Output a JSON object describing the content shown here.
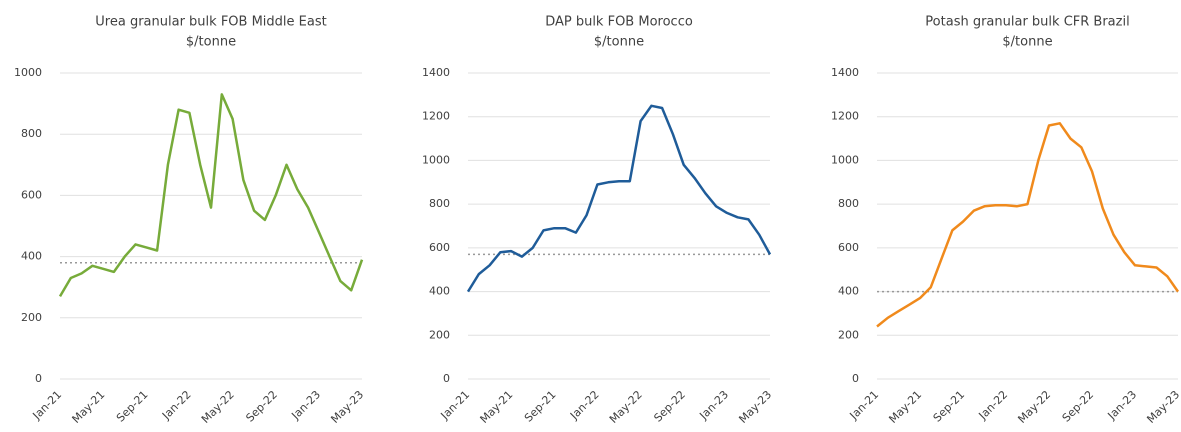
{
  "chart_data": [
    {
      "type": "line",
      "title": "Urea granular bulk FOB Middle East",
      "subtitle": "$/tonne",
      "categories": [
        "Jan-21",
        null,
        null,
        null,
        "May-21",
        null,
        null,
        null,
        "Sep-21",
        null,
        null,
        null,
        "Jan-22",
        null,
        null,
        null,
        "May-22",
        null,
        null,
        null,
        "Sep-22",
        null,
        null,
        null,
        "Jan-23",
        null,
        null,
        null,
        "May-23"
      ],
      "series": [
        {
          "name": "Urea",
          "color": "#77ab3a",
          "values": [
            270,
            330,
            345,
            370,
            360,
            350,
            400,
            440,
            430,
            420,
            700,
            880,
            870,
            700,
            560,
            930,
            850,
            650,
            550,
            520,
            600,
            700,
            620,
            560,
            480,
            400,
            320,
            290,
            390
          ]
        }
      ],
      "reference": 380,
      "ylim": [
        0,
        1000
      ],
      "yticks": [
        0,
        200,
        400,
        600,
        800,
        1000
      ],
      "grid": true
    },
    {
      "type": "line",
      "title": "DAP bulk FOB Morocco",
      "subtitle": "$/tonne",
      "categories": [
        "Jan-21",
        null,
        null,
        null,
        "May-21",
        null,
        null,
        null,
        "Sep-21",
        null,
        null,
        null,
        "Jan-22",
        null,
        null,
        null,
        "May-22",
        null,
        null,
        null,
        "Sep-22",
        null,
        null,
        null,
        "Jan-23",
        null,
        null,
        null,
        "May-23"
      ],
      "series": [
        {
          "name": "DAP",
          "color": "#1f5c99",
          "values": [
            400,
            480,
            520,
            580,
            585,
            560,
            600,
            680,
            690,
            690,
            670,
            750,
            890,
            900,
            905,
            905,
            1180,
            1250,
            1240,
            1120,
            980,
            920,
            850,
            790,
            760,
            740,
            730,
            660,
            570
          ]
        }
      ],
      "reference": 570,
      "ylim": [
        0,
        1400
      ],
      "yticks": [
        0,
        200,
        400,
        600,
        800,
        1000,
        1200,
        1400
      ],
      "grid": true
    },
    {
      "type": "line",
      "title": "Potash granular bulk CFR Brazil",
      "subtitle": "$/tonne",
      "categories": [
        "Jan-21",
        null,
        null,
        null,
        "May-21",
        null,
        null,
        null,
        "Sep-21",
        null,
        null,
        null,
        "Jan-22",
        null,
        null,
        null,
        "May-22",
        null,
        null,
        null,
        "Sep-22",
        null,
        null,
        null,
        "Jan-23",
        null,
        null,
        null,
        "May-23"
      ],
      "series": [
        {
          "name": "Potash",
          "color": "#f08a1c",
          "values": [
            240,
            280,
            310,
            340,
            370,
            420,
            550,
            680,
            720,
            770,
            790,
            795,
            795,
            790,
            800,
            1000,
            1160,
            1170,
            1100,
            1060,
            950,
            780,
            660,
            580,
            520,
            515,
            510,
            470,
            400
          ]
        }
      ],
      "reference": 400,
      "ylim": [
        0,
        1400
      ],
      "yticks": [
        0,
        200,
        400,
        600,
        800,
        1000,
        1200,
        1400
      ],
      "grid": true
    }
  ]
}
